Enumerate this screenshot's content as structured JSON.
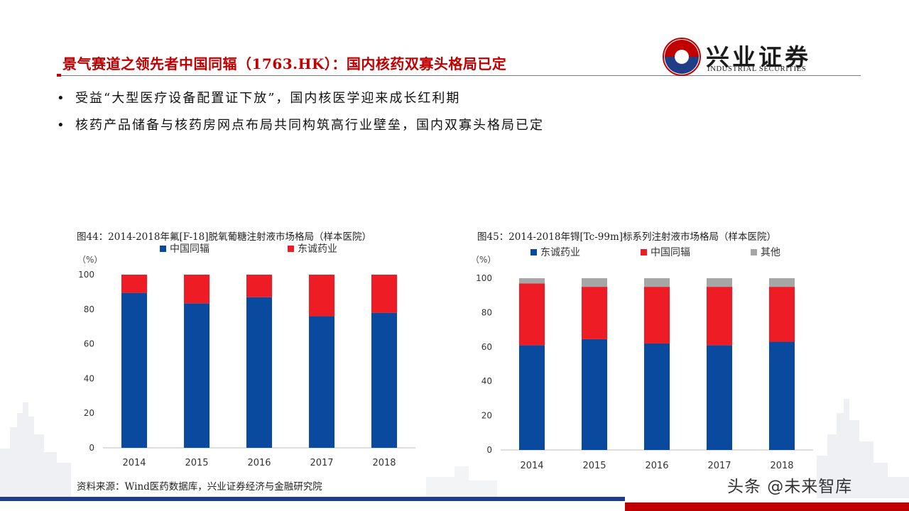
{
  "header": {
    "title": "景气赛道之领先者中国同辐（1763.HK）：国内核药双寡头格局已定",
    "logo_cn": "兴业证券",
    "logo_en": "INDUSTRIAL SECURITIES"
  },
  "bullets": [
    "受益“大型医疗设备配置证下放”，国内核医学迎来成长红利期",
    "核药产品储备与核药房网点布局共同构筑高行业壁垒，国内双寡头格局已定"
  ],
  "colors": {
    "blue": "#0a4a9e",
    "red": "#ee1c25",
    "gray": "#a6a6a6",
    "accent": "#c00000",
    "navy": "#1f3e88"
  },
  "chart_data": [
    {
      "type": "bar",
      "stacked": true,
      "title": "图44：2014-2018年氟[F-18]脱氧葡糖注射液市场格局（样本医院）",
      "unit_label": "（%）",
      "categories": [
        "2014",
        "2015",
        "2016",
        "2017",
        "2018"
      ],
      "series": [
        {
          "name": "中国同辐",
          "color": "#0a4a9e",
          "values": [
            89.5,
            83.5,
            87,
            76,
            78
          ]
        },
        {
          "name": "东诚药业",
          "color": "#ee1c25",
          "values": [
            10.5,
            16.5,
            13,
            24,
            22
          ]
        }
      ],
      "ylim": [
        0,
        100
      ],
      "yticks": [
        "0",
        "20",
        "40",
        "60",
        "80",
        "100"
      ],
      "legend": "top"
    },
    {
      "type": "bar",
      "stacked": true,
      "title": "图45：2014-2018年锝[Tc-99m]标系列注射液市场格局（样本医院）",
      "unit_label": "（%）",
      "categories": [
        "2014",
        "2015",
        "2016",
        "2017",
        "2018"
      ],
      "series": [
        {
          "name": "东诚药业",
          "color": "#0a4a9e",
          "values": [
            61,
            64.5,
            62,
            61,
            63
          ]
        },
        {
          "name": "中国同辐",
          "color": "#ee1c25",
          "values": [
            36,
            30.5,
            33,
            34,
            32
          ]
        },
        {
          "name": "其他",
          "color": "#a6a6a6",
          "values": [
            3,
            5,
            5,
            5,
            5
          ]
        }
      ],
      "ylim": [
        0,
        100
      ],
      "yticks": [
        "0",
        "20",
        "40",
        "60",
        "80",
        "100"
      ],
      "legend": "top"
    }
  ],
  "footer": {
    "source": "资料来源：Wind医药数据库，兴业证券经济与金融研究院",
    "watermark": "头条 @未来智库"
  }
}
